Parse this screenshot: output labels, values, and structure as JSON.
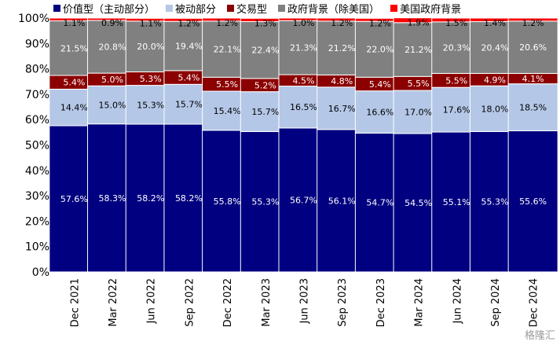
{
  "chart_data": {
    "type": "bar",
    "stacked": true,
    "categories": [
      "Dec 2021",
      "Mar 2022",
      "Jun 2022",
      "Sep 2022",
      "Dec 2022",
      "Mar 2023",
      "Jun 2023",
      "Sep 2023",
      "Dec 2023",
      "Mar 2024",
      "Jun 2024",
      "Sep 2024",
      "Dec 2024"
    ],
    "series": [
      {
        "name": "价值型（主动部分）",
        "color": "#000080",
        "label_color": "#ffffff",
        "values": [
          57.6,
          58.3,
          58.2,
          58.2,
          55.8,
          55.3,
          56.7,
          56.1,
          54.7,
          54.5,
          55.1,
          55.3,
          55.6
        ],
        "labels": [
          "57.6%",
          "58.3%",
          "58.2%",
          "58.2%",
          "55.8%",
          "55.3%",
          "56.7%",
          "56.1%",
          "54.7%",
          "54.5%",
          "55.1%",
          "55.3%",
          "55.6%"
        ]
      },
      {
        "name": "被动部分",
        "color": "#b4c7e7",
        "label_color": "#000000",
        "values": [
          14.4,
          15.0,
          15.3,
          15.7,
          15.4,
          15.7,
          16.5,
          16.7,
          16.6,
          17.0,
          17.6,
          18.0,
          18.5
        ],
        "labels": [
          "14.4%",
          "15.0%",
          "15.3%",
          "15.7%",
          "15.4%",
          "15.7%",
          "16.5%",
          "16.7%",
          "16.6%",
          "17.0%",
          "17.6%",
          "18.0%",
          "18.5%"
        ]
      },
      {
        "name": "交易型",
        "color": "#8b0000",
        "label_color": "#ffffff",
        "values": [
          5.4,
          5.0,
          5.3,
          5.4,
          5.5,
          5.2,
          4.5,
          4.8,
          5.4,
          5.5,
          5.5,
          4.9,
          4.1
        ],
        "labels": [
          "5.4%",
          "5.0%",
          "5.3%",
          "5.4%",
          "5.5%",
          "5.2%",
          "4.5%",
          "4.8%",
          "5.4%",
          "5.5%",
          "5.5%",
          "4.9%",
          "4.1%"
        ]
      },
      {
        "name": "政府背景（除美国）",
        "color": "#808080",
        "label_color": "#ffffff",
        "values": [
          21.5,
          20.8,
          20.0,
          19.4,
          22.1,
          22.4,
          21.3,
          21.2,
          22.0,
          21.2,
          20.3,
          20.4,
          20.6
        ],
        "labels": [
          "21.5%",
          "20.8%",
          "20.0%",
          "19.4%",
          "22.1%",
          "22.4%",
          "21.3%",
          "21.2%",
          "22.0%",
          "21.2%",
          "20.3%",
          "20.4%",
          "20.6%"
        ]
      },
      {
        "name": "美国政府背景",
        "color": "#ff0000",
        "label_color": "#000000",
        "values": [
          1.1,
          0.9,
          1.1,
          1.2,
          1.2,
          1.3,
          1.0,
          1.2,
          1.2,
          1.9,
          1.5,
          1.4,
          1.2
        ],
        "labels": [
          "1.1%",
          "0.9%",
          "1.1%",
          "1.2%",
          "1.2%",
          "1.3%",
          "1.0%",
          "1.2%",
          "1.2%",
          "1.9%",
          "1.5%",
          "1.4%",
          "1.2%"
        ]
      }
    ],
    "y_ticks": [
      "0%",
      "10%",
      "20%",
      "30%",
      "40%",
      "50%",
      "60%",
      "70%",
      "80%",
      "90%",
      "100%"
    ],
    "ylim": [
      0,
      100
    ],
    "legend_position": "top",
    "grid": false
  },
  "watermark": "格隆汇"
}
